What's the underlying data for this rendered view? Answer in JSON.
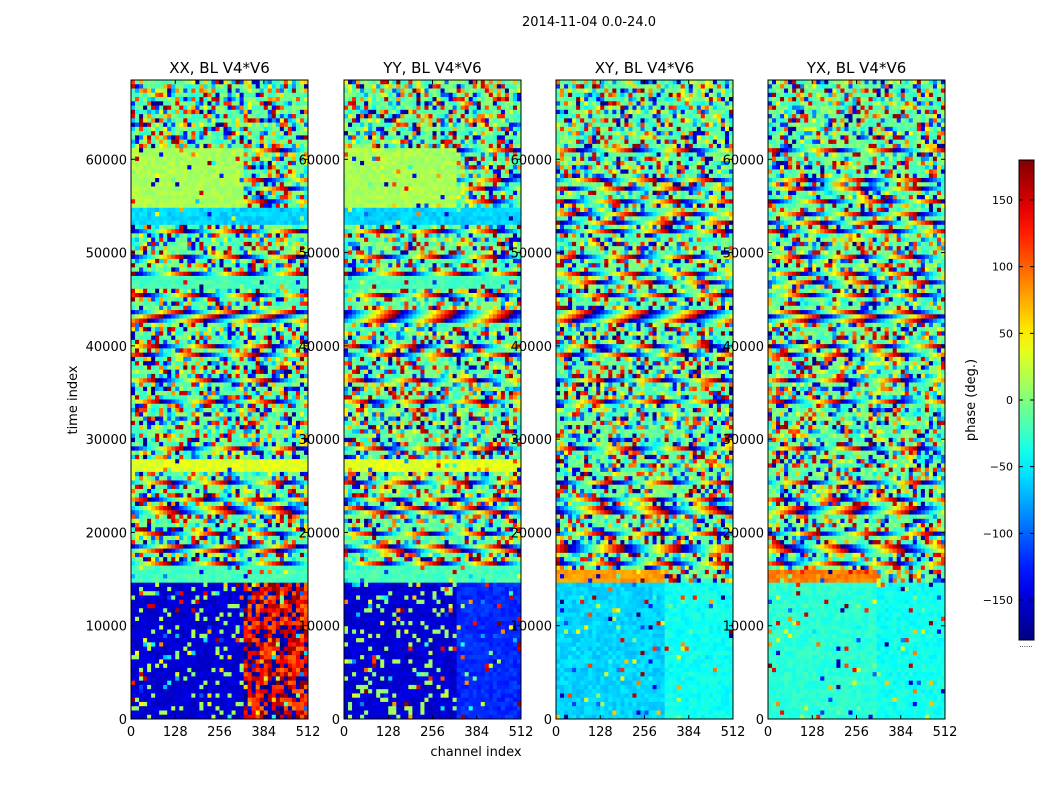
{
  "chart_data": {
    "type": "heatmap",
    "suptitle": "2014-11-04 0.0-24.0",
    "xlabel": "channel index",
    "ylabel": "time index",
    "x_range": [
      0,
      512
    ],
    "y_range": [
      0,
      68500
    ],
    "x_ticks": [
      0,
      128,
      256,
      384,
      512
    ],
    "y_ticks": [
      0,
      10000,
      20000,
      30000,
      40000,
      50000,
      60000
    ],
    "colormap": "jet",
    "colorbar": {
      "label": "phase (deg.)",
      "range": [
        -180,
        180
      ],
      "ticks": [
        150,
        100,
        50,
        0,
        -50,
        -100,
        -150
      ],
      "tick_labels": [
        "150",
        "100",
        "50",
        "0",
        "−50",
        "−100",
        "−150"
      ],
      "extra_label": "......"
    },
    "panels": [
      {
        "title": "XX, BL V4*V6",
        "regions": [
          {
            "t0": 0,
            "t1": 14500,
            "c0": 0,
            "c1": 330,
            "phase": -150,
            "note": "blue with stripes"
          },
          {
            "t0": 0,
            "t1": 14500,
            "c0": 330,
            "c1": 512,
            "phase": 150,
            "note": "red/noisy"
          },
          {
            "t0": 14500,
            "t1": 16500,
            "c0": 0,
            "c1": 512,
            "phase": -20
          },
          {
            "t0": 26500,
            "t1": 28000,
            "c0": 0,
            "c1": 512,
            "phase": 35
          },
          {
            "t0": 46000,
            "t1": 47500,
            "c0": 0,
            "c1": 512,
            "phase": -20
          },
          {
            "t0": 53000,
            "t1": 55000,
            "c0": 0,
            "c1": 512,
            "phase": -60
          },
          {
            "t0": 55000,
            "t1": 61000,
            "c0": 0,
            "c1": 330,
            "phase": 15
          }
        ]
      },
      {
        "title": "YY, BL V4*V6",
        "regions": [
          {
            "t0": 0,
            "t1": 14500,
            "c0": 0,
            "c1": 330,
            "phase": -150,
            "note": "blue with stripes"
          },
          {
            "t0": 0,
            "t1": 14500,
            "c0": 330,
            "c1": 512,
            "phase": -120
          },
          {
            "t0": 14500,
            "t1": 16500,
            "c0": 0,
            "c1": 512,
            "phase": -20
          },
          {
            "t0": 26500,
            "t1": 28000,
            "c0": 0,
            "c1": 512,
            "phase": 35
          },
          {
            "t0": 46000,
            "t1": 47500,
            "c0": 0,
            "c1": 512,
            "phase": -20
          },
          {
            "t0": 53000,
            "t1": 55000,
            "c0": 0,
            "c1": 512,
            "phase": -60
          },
          {
            "t0": 55000,
            "t1": 61000,
            "c0": 0,
            "c1": 330,
            "phase": 15
          }
        ]
      },
      {
        "title": "XY, BL V4*V6",
        "regions": [
          {
            "t0": 0,
            "t1": 14500,
            "c0": 0,
            "c1": 320,
            "phase": -60,
            "note": "cyan"
          },
          {
            "t0": 0,
            "t1": 14500,
            "c0": 320,
            "c1": 512,
            "phase": -40
          },
          {
            "t0": 14500,
            "t1": 16200,
            "c0": 0,
            "c1": 320,
            "phase": 80,
            "note": "orange band"
          }
        ]
      },
      {
        "title": "YX, BL V4*V6",
        "regions": [
          {
            "t0": 0,
            "t1": 14500,
            "c0": 0,
            "c1": 320,
            "phase": -30,
            "note": "cyan/green"
          },
          {
            "t0": 0,
            "t1": 14500,
            "c0": 320,
            "c1": 512,
            "phase": -40
          },
          {
            "t0": 14500,
            "t1": 16200,
            "c0": 0,
            "c1": 320,
            "phase": 90,
            "note": "orange band"
          }
        ]
      }
    ]
  }
}
